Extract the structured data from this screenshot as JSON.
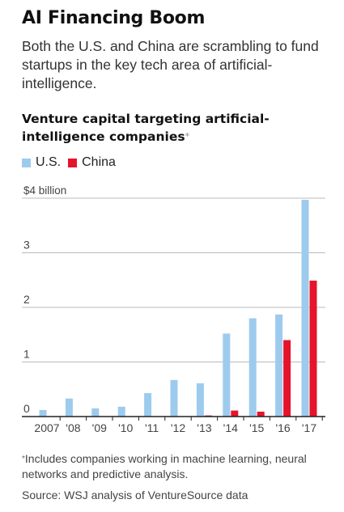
{
  "headline": "AI Financing Boom",
  "dek": "Both the U.S. and China are scrambling to fund startups in the key tech area of artificial-intelligence.",
  "chart_title": "Venture capital targeting artificial-intelligence companies",
  "chart_title_mark": "*",
  "footnote_mark": "*",
  "footnote": "Includes companies working in machine learning, neural networks and predictive analysis.",
  "source": "Source: WSJ analysis of VentureSource data",
  "colors": {
    "us": "#9dcbee",
    "china": "#e5142b",
    "grid": "#bbbbbb",
    "axis": "#222222"
  },
  "chart_data": {
    "type": "bar",
    "title": "Venture capital targeting artificial-intelligence companies",
    "xlabel": "",
    "ylabel": "",
    "ylim": [
      0,
      4
    ],
    "yticks": [
      0,
      1,
      2,
      3,
      4
    ],
    "ytick_labels": [
      "0",
      "1",
      "2",
      "3",
      "$4 billion"
    ],
    "categories": [
      "2007",
      "'08",
      "'09",
      "'10",
      "'11",
      "'12",
      "'13",
      "'14",
      "'15",
      "'16",
      "'17"
    ],
    "legend_placement": "top-left",
    "grid": true,
    "series": [
      {
        "name": "U.S.",
        "values": [
          0.12,
          0.33,
          0.15,
          0.18,
          0.43,
          0.67,
          0.61,
          1.52,
          1.8,
          1.87,
          3.97
        ]
      },
      {
        "name": "China",
        "values": [
          0,
          0,
          0,
          0,
          0,
          0,
          0.02,
          0.11,
          0.09,
          1.4,
          2.49
        ]
      }
    ]
  }
}
